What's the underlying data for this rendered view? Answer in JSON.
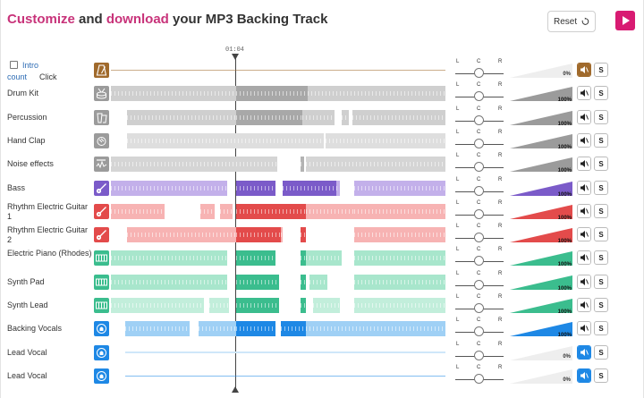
{
  "header": {
    "title_parts": [
      {
        "text": "Customize",
        "accent": true
      },
      {
        "text": " and ",
        "accent": false
      },
      {
        "text": "download",
        "accent": true
      },
      {
        "text": " your MP3 Backing Track",
        "accent": false
      }
    ],
    "reset_label": "Reset",
    "reset_icon": "refresh-icon",
    "play_icon": "play-icon"
  },
  "timeline": {
    "position": "01:04"
  },
  "intro": {
    "label": "Intro",
    "count_label": "count",
    "click_label": "Click"
  },
  "pan_labels": {
    "left": "L",
    "center": "C",
    "right": "R"
  },
  "colors": {
    "accent": "#c8337a",
    "play": "#d81b72",
    "metronome": "#a06a2c",
    "drums_icon": "#9b9b9b",
    "bass": "#7b5bc9",
    "guitar": "#e34b4b",
    "keys": "#3bbd8e",
    "vocals": "#1e88e5"
  },
  "tracks": [
    {
      "key": "metronome",
      "name": "",
      "icon": "metronome-icon",
      "color": "#a06a2c",
      "wave": "#d8ae7a",
      "waveDark": "#a06a2c",
      "volume": "0%",
      "volume_level": 0,
      "muted": true,
      "mute_color": "#a06a2c",
      "segments": [
        [
          0,
          374,
          "line"
        ]
      ]
    },
    {
      "key": "drum-kit",
      "name": "Drum Kit",
      "icon": "drum-icon",
      "color": "#9b9b9b",
      "wave": "#cfcfcf",
      "waveDark": "#a8a8a8",
      "volume": "100%",
      "volume_level": 100,
      "muted": false,
      "segments": [
        [
          0,
          140,
          "l"
        ],
        [
          140,
          80,
          "d"
        ],
        [
          220,
          154,
          "l"
        ]
      ]
    },
    {
      "key": "percussion",
      "name": "Percussion",
      "icon": "conga-icon",
      "color": "#9b9b9b",
      "wave": "#cfcfcf",
      "waveDark": "#a8a8a8",
      "volume": "100%",
      "volume_level": 100,
      "muted": false,
      "segments": [
        [
          18,
          122,
          "l"
        ],
        [
          140,
          44,
          "d"
        ],
        [
          184,
          30,
          "d"
        ],
        [
          214,
          36,
          "l"
        ],
        [
          258,
          8,
          "l"
        ],
        [
          270,
          104,
          "l"
        ]
      ]
    },
    {
      "key": "hand-clap",
      "name": "Hand Clap",
      "icon": "clap-icon",
      "color": "#9b9b9b",
      "wave": "#dedede",
      "waveDark": "#c4c4c4",
      "volume": "100%",
      "volume_level": 100,
      "muted": false,
      "segments": [
        [
          18,
          140,
          "l"
        ],
        [
          158,
          44,
          "l"
        ],
        [
          202,
          36,
          "l"
        ],
        [
          240,
          134,
          "l"
        ]
      ]
    },
    {
      "key": "noise-effects",
      "name": "Noise effects",
      "icon": "sfx-icon",
      "color": "#9b9b9b",
      "wave": "#d5d5d5",
      "waveDark": "#b3b3b3",
      "volume": "100%",
      "volume_level": 100,
      "muted": false,
      "segments": [
        [
          0,
          186,
          "l"
        ],
        [
          212,
          4,
          "d"
        ],
        [
          218,
          156,
          "l"
        ]
      ]
    },
    {
      "key": "bass",
      "name": "Bass",
      "icon": "bass-icon",
      "color": "#7b5bc9",
      "wave": "#c3b0ea",
      "waveDark": "#7b5bc9",
      "volume": "100%",
      "volume_level": 100,
      "muted": false,
      "segments": [
        [
          0,
          130,
          "l"
        ],
        [
          140,
          44,
          "d"
        ],
        [
          192,
          60,
          "d"
        ],
        [
          252,
          4,
          "l"
        ],
        [
          272,
          102,
          "l"
        ]
      ]
    },
    {
      "key": "rhythm-guitar-1",
      "name": "Rhythm Electric Guitar 1",
      "icon": "guitar-icon",
      "color": "#e34b4b",
      "wave": "#f7b3b3",
      "waveDark": "#e34b4b",
      "volume": "100%",
      "volume_level": 100,
      "muted": false,
      "segments": [
        [
          0,
          60,
          "l"
        ],
        [
          100,
          16,
          "l"
        ],
        [
          122,
          14,
          "l"
        ],
        [
          140,
          72,
          "d"
        ],
        [
          212,
          6,
          "d"
        ],
        [
          218,
          54,
          "l"
        ],
        [
          272,
          102,
          "l"
        ]
      ]
    },
    {
      "key": "rhythm-guitar-2",
      "name": "Rhythm Electric Guitar 2",
      "icon": "guitar-icon",
      "color": "#e34b4b",
      "wave": "#f7b3b3",
      "waveDark": "#e34b4b",
      "volume": "100%",
      "volume_level": 100,
      "muted": false,
      "segments": [
        [
          18,
          122,
          "l"
        ],
        [
          140,
          50,
          "d"
        ],
        [
          190,
          2,
          "l"
        ],
        [
          212,
          6,
          "d"
        ],
        [
          272,
          102,
          "l"
        ]
      ]
    },
    {
      "key": "electric-piano",
      "name": "Electric Piano (Rhodes)",
      "icon": "keyboard-icon",
      "color": "#3bbd8e",
      "wave": "#a8e6cc",
      "waveDark": "#3bbd8e",
      "volume": "100%",
      "volume_level": 100,
      "muted": false,
      "segments": [
        [
          0,
          130,
          "l"
        ],
        [
          140,
          44,
          "d"
        ],
        [
          212,
          6,
          "d"
        ],
        [
          218,
          40,
          "l"
        ],
        [
          272,
          102,
          "l"
        ]
      ]
    },
    {
      "key": "synth-pad",
      "name": "Synth Pad",
      "icon": "keyboard-icon",
      "color": "#3bbd8e",
      "wave": "#a8e6cc",
      "waveDark": "#3bbd8e",
      "volume": "100%",
      "volume_level": 100,
      "muted": false,
      "segments": [
        [
          0,
          130,
          "l"
        ],
        [
          140,
          48,
          "d"
        ],
        [
          212,
          6,
          "d"
        ],
        [
          222,
          20,
          "l"
        ],
        [
          272,
          102,
          "l"
        ]
      ]
    },
    {
      "key": "synth-lead",
      "name": "Synth Lead",
      "icon": "keyboard-icon",
      "color": "#3bbd8e",
      "wave": "#c2eedb",
      "waveDark": "#3bbd8e",
      "volume": "100%",
      "volume_level": 100,
      "muted": false,
      "segments": [
        [
          0,
          104,
          "l"
        ],
        [
          110,
          22,
          "l"
        ],
        [
          140,
          48,
          "d"
        ],
        [
          212,
          6,
          "d"
        ],
        [
          226,
          30,
          "l"
        ],
        [
          272,
          102,
          "l"
        ]
      ]
    },
    {
      "key": "backing-vocals",
      "name": "Backing Vocals",
      "icon": "vocals-icon",
      "color": "#1e88e5",
      "wave": "#9fd0f5",
      "waveDark": "#1e88e5",
      "volume": "100%",
      "volume_level": 100,
      "muted": false,
      "segments": [
        [
          16,
          72,
          "l"
        ],
        [
          98,
          44,
          "l"
        ],
        [
          140,
          44,
          "d"
        ],
        [
          190,
          28,
          "d"
        ],
        [
          218,
          156,
          "l"
        ]
      ]
    },
    {
      "key": "lead-vocal-1",
      "name": "Lead Vocal",
      "icon": "vocals-icon",
      "color": "#1e88e5",
      "wave": "#cfe7fa",
      "waveDark": "#1e88e5",
      "volume": "0%",
      "volume_level": 0,
      "muted": true,
      "mute_color": "#1e88e5",
      "segments": [
        [
          16,
          358,
          "faint"
        ]
      ]
    },
    {
      "key": "lead-vocal-2",
      "name": "Lead Vocal",
      "icon": "vocals-icon",
      "color": "#1e88e5",
      "wave": "#cfe7fa",
      "waveDark": "#1e88e5",
      "volume": "0%",
      "volume_level": 0,
      "muted": true,
      "mute_color": "#1e88e5",
      "segments": [
        [
          16,
          358,
          "line"
        ]
      ]
    }
  ],
  "solo_label": "S"
}
